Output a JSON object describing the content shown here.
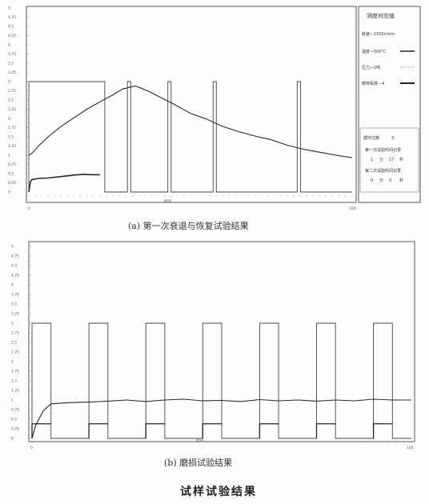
{
  "colors": {
    "frame": "#555555",
    "trace": "#2a2a2a",
    "background": "#fdfdfb"
  },
  "figure_title": "试样试验结果",
  "chart_data": [
    {
      "id": "a",
      "type": "line",
      "caption": "(a)  第一次衰退与恢复试验结果",
      "xlabel": "时间",
      "xlim": [
        0,
        100
      ],
      "ylim": [
        0,
        5
      ],
      "y_ticks": [
        "0",
        "0.25",
        "0.5",
        "0.75",
        "1",
        "1.25",
        "1.5",
        "1.75",
        "2",
        "2.25",
        "2.5",
        "2.75",
        "3",
        "3.25",
        "3.5",
        "3.75",
        "4",
        "4.25",
        "4.5",
        "4.75",
        "5"
      ],
      "x_ticks": [
        "0",
        "100"
      ],
      "legend": {
        "title": "测度对应值",
        "items": [
          "转速—1500r/min",
          "温度—500℃",
          "压力—2吨",
          "摩擦系数—4"
        ]
      },
      "info": {
        "cycle_label": "循环次数",
        "cycle_value": "3",
        "record1_label": "第一次试验时间记录",
        "record1_values": [
          "1",
          "分",
          "17",
          "秒"
        ],
        "record2_label": "第二次试验时间记录",
        "record2_values": [
          "0",
          "分",
          "0",
          "秒"
        ]
      },
      "series": [
        {
          "name": "压力",
          "style": "square",
          "segments": [
            [
              0,
              23.5
            ],
            [
              30.5,
              31.5
            ],
            [
              43,
              44
            ],
            [
              57,
              58
            ],
            [
              83,
              84
            ]
          ],
          "high": 3,
          "low": 0
        },
        {
          "name": "温度",
          "x": [
            0,
            1,
            3,
            6,
            10,
            14,
            18,
            22,
            26,
            29,
            33,
            37,
            41,
            45,
            50,
            55,
            60,
            65,
            70,
            75,
            80,
            85,
            90,
            95,
            100
          ],
          "y": [
            1.0,
            1.05,
            1.25,
            1.5,
            1.78,
            2.02,
            2.25,
            2.45,
            2.64,
            2.8,
            2.88,
            2.74,
            2.56,
            2.38,
            2.14,
            1.98,
            1.78,
            1.64,
            1.52,
            1.42,
            1.27,
            1.16,
            1.08,
            1.0,
            0.93
          ]
        },
        {
          "name": "摩擦系数",
          "x": [
            0,
            0.5,
            1,
            3,
            6,
            10,
            14,
            17,
            20,
            22
          ],
          "y": [
            0.0,
            0.28,
            0.34,
            0.37,
            0.38,
            0.42,
            0.46,
            0.48,
            0.47,
            0.47
          ]
        }
      ]
    },
    {
      "id": "b",
      "type": "line",
      "caption": "(b)  磨损试验结果",
      "xlabel": "时间",
      "xlim": [
        0,
        100
      ],
      "ylim": [
        0,
        5
      ],
      "y_ticks": [
        "0",
        "0.25",
        "0.5",
        "0.75",
        "1",
        "1.25",
        "1.5",
        "1.75",
        "2",
        "2.25",
        "2.5",
        "2.75",
        "3",
        "3.25",
        "3.5",
        "3.75",
        "4",
        "4.25",
        "4.5",
        "4.75",
        "5"
      ],
      "x_ticks": [
        "0",
        "100"
      ],
      "series": [
        {
          "name": "压力",
          "style": "square",
          "segments": [
            [
              0,
              5
            ],
            [
              15,
              20
            ],
            [
              30,
              35
            ],
            [
              45,
              50
            ],
            [
              60,
              65
            ],
            [
              75,
              80
            ],
            [
              90,
              95
            ]
          ],
          "high": 3,
          "low": 0
        },
        {
          "name": "温度",
          "x": [
            0,
            1,
            3,
            5,
            8,
            12,
            16,
            20,
            25,
            30,
            35,
            40,
            45,
            50,
            55,
            60,
            65,
            70,
            75,
            80,
            85,
            90,
            95,
            100
          ],
          "y": [
            0,
            0.35,
            0.72,
            0.9,
            0.92,
            0.94,
            0.95,
            0.97,
            1.0,
            0.96,
            1.0,
            1.02,
            0.98,
            0.99,
            0.96,
            1.01,
            0.98,
            1.0,
            0.97,
            1.0,
            0.98,
            1.02,
            1.0,
            1.0
          ]
        },
        {
          "name": "摩擦系数",
          "segments_y": 0.38,
          "bursts": [
            [
              0,
              5
            ],
            [
              15,
              20
            ],
            [
              30,
              35
            ],
            [
              45,
              50
            ],
            [
              60,
              65
            ],
            [
              75,
              80
            ],
            [
              90,
              95
            ]
          ]
        }
      ]
    }
  ]
}
